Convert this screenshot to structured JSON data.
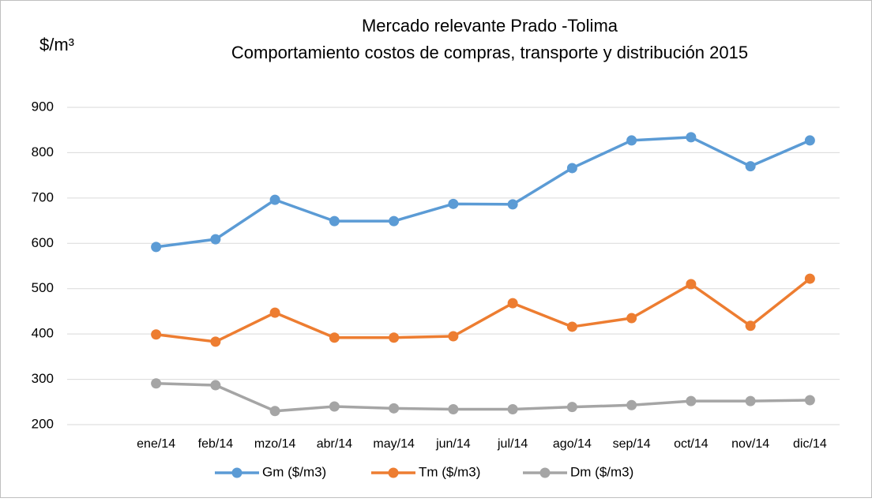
{
  "chart_data": {
    "type": "line",
    "title": "Mercado relevante Prado -Tolima",
    "subtitle": "Comportamiento  costos de compras, transporte y distribución  2015",
    "y_label": "$/m³",
    "categories": [
      "ene/14",
      "feb/14",
      "mzo/14",
      "abr/14",
      "may/14",
      "jun/14",
      "jul/14",
      "ago/14",
      "sep/14",
      "oct/14",
      "nov/14",
      "dic/14"
    ],
    "series": [
      {
        "name": "Gm ($/m3)",
        "color": "#5b9bd5",
        "values": [
          592,
          609,
          696,
          649,
          649,
          687,
          686,
          766,
          827,
          834,
          770,
          827
        ]
      },
      {
        "name": "Tm ($/m3)",
        "color": "#ed7d31",
        "values": [
          399,
          383,
          447,
          392,
          392,
          395,
          468,
          416,
          435,
          510,
          418,
          522
        ]
      },
      {
        "name": "Dm  ($/m3)",
        "color": "#a5a5a5",
        "values": [
          291,
          287,
          230,
          240,
          236,
          234,
          234,
          239,
          243,
          252,
          252,
          254
        ]
      }
    ],
    "ylim": [
      200,
      900
    ],
    "yticks": [
      200,
      300,
      400,
      500,
      600,
      700,
      800,
      900
    ],
    "grid": true,
    "legend": "bottom"
  }
}
